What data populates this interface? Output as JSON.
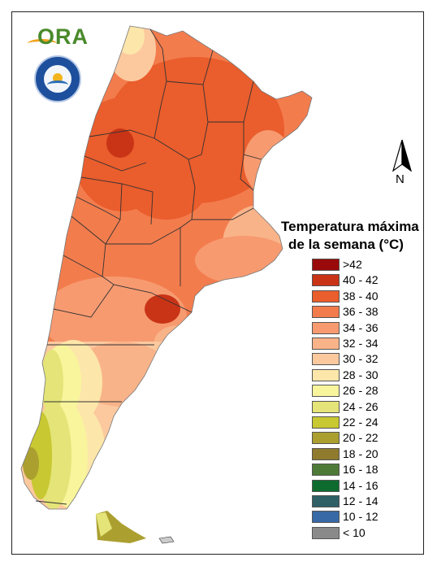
{
  "logos": {
    "ora_text": "ORA",
    "seal_caption": "SERVICIO METEOROLÓGICO NACIONAL · ARGENTINA"
  },
  "north_arrow": {
    "label": "N"
  },
  "legend": {
    "title_line1": "Temperatura máxima",
    "title_line2": "de la semana (°C)",
    "items": [
      {
        "label": ">42",
        "color": "#9b0a0a"
      },
      {
        "label": "40 - 42",
        "color": "#c93416"
      },
      {
        "label": "38 - 40",
        "color": "#ea5d2c"
      },
      {
        "label": "36 - 38",
        "color": "#f37c4d"
      },
      {
        "label": "34 - 36",
        "color": "#f79a70"
      },
      {
        "label": "32 - 34",
        "color": "#f9b389"
      },
      {
        "label": "30 - 32",
        "color": "#fcc99f"
      },
      {
        "label": "28 - 30",
        "color": "#fde6aa"
      },
      {
        "label": "26 - 28",
        "color": "#f8f59c"
      },
      {
        "label": "24 - 26",
        "color": "#e4e478"
      },
      {
        "label": "22 - 24",
        "color": "#c8c832"
      },
      {
        "label": "20 - 22",
        "color": "#ab9f30"
      },
      {
        "label": "18 - 20",
        "color": "#8f7a2e"
      },
      {
        "label": "16 - 18",
        "color": "#4e7a37"
      },
      {
        "label": "14 - 16",
        "color": "#0e6b2e"
      },
      {
        "label": "12 - 14",
        "color": "#2f6066"
      },
      {
        "label": "10 - 12",
        "color": "#3769a6"
      },
      {
        "label": "< 10",
        "color": "#8a8a8a"
      }
    ]
  }
}
